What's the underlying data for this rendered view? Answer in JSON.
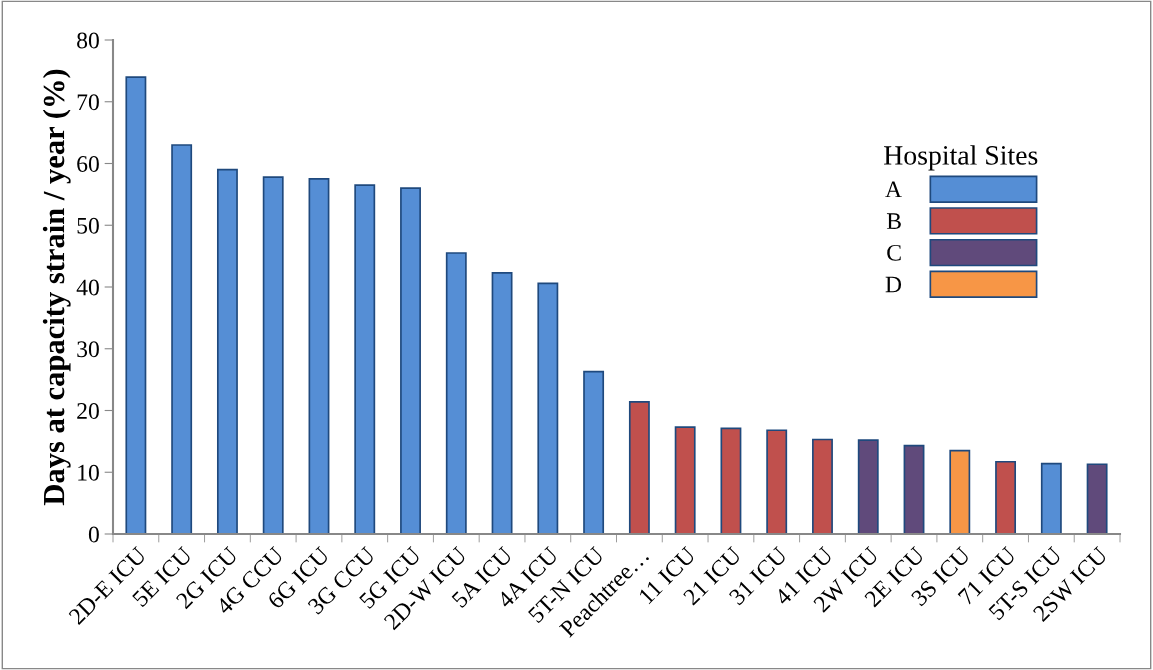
{
  "chart_data": {
    "type": "bar",
    "ylabel": "Days at capacity strain / year (%)",
    "legend_title": "Hospital Sites",
    "legend": "top right",
    "categories": [
      "2D-E ICU",
      "5E ICU",
      "2G ICU",
      "4G CCU",
      "6G ICU",
      "3G CCU",
      "5G ICU",
      "2D-W ICU",
      "5A ICU",
      "4A ICU",
      "5T-N ICU",
      "Peachtree…",
      "11 ICU",
      "21 ICU",
      "31 ICU",
      "41 ICU",
      "2W ICU",
      "2E ICU",
      "3S ICU",
      "71 ICU",
      "5T-S ICU",
      "2SW ICU"
    ],
    "series": [
      {
        "name": "A",
        "color": "#558ed5",
        "values": [
          74,
          63,
          59,
          57.8,
          57.5,
          56.5,
          56,
          45.5,
          42.3,
          40.6,
          26.3,
          null,
          null,
          null,
          null,
          null,
          null,
          null,
          null,
          null,
          11.4,
          null
        ]
      },
      {
        "name": "B",
        "color": "#c0504d",
        "values": [
          null,
          null,
          null,
          null,
          null,
          null,
          null,
          null,
          null,
          null,
          null,
          21.4,
          17.3,
          17.1,
          16.8,
          15.3,
          null,
          null,
          null,
          11.7,
          null,
          null
        ]
      },
      {
        "name": "C",
        "color": "#604a7b",
        "values": [
          null,
          null,
          null,
          null,
          null,
          null,
          null,
          null,
          null,
          null,
          null,
          null,
          null,
          null,
          null,
          null,
          15.2,
          14.3,
          null,
          null,
          null,
          11.3
        ]
      },
      {
        "name": "D",
        "color": "#f79646",
        "values": [
          null,
          null,
          null,
          null,
          null,
          null,
          null,
          null,
          null,
          null,
          null,
          null,
          null,
          null,
          null,
          null,
          null,
          null,
          13.5,
          null,
          null,
          null
        ]
      }
    ],
    "ylim": [
      0,
      80
    ],
    "yticks": [
      0,
      10,
      20,
      30,
      40,
      50,
      60,
      70,
      80
    ],
    "grid": false
  }
}
